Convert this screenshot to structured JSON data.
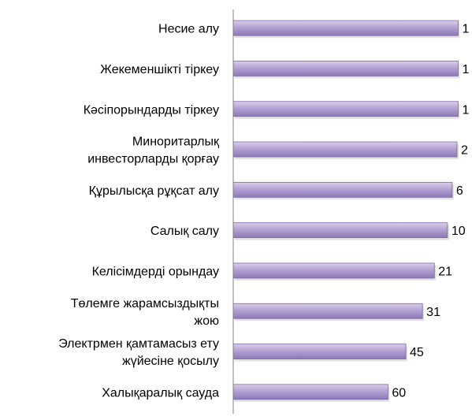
{
  "chart_data": {
    "type": "bar",
    "orientation": "horizontal",
    "categories": [
      "Несие алу",
      "Жекеменшікті тіркеу",
      "Кәсіпорындарды тіркеу",
      "Миноритарлық инвесторларды қорғау",
      "Құрылысқа рұқсат алу",
      "Салық салу",
      "Келісімдерді орындау",
      "Төлемге жарамсыздықты жою",
      "Электрмен қамтамасыз ету жүйесіне қосылу",
      "Халықаралық сауда"
    ],
    "category_lines": [
      [
        "Несие алу"
      ],
      [
        "Жекеменшікті тіркеу"
      ],
      [
        "Кәсіпорындарды тіркеу"
      ],
      [
        "Миноритарлық",
        "инвесторларды қорғау"
      ],
      [
        "Құрылысқа рұқсат алу"
      ],
      [
        "Салық салу"
      ],
      [
        "Келісімдерді орындау"
      ],
      [
        "Төлемге жарамсыздықты",
        "жою"
      ],
      [
        "Электрмен қамтамасыз ету",
        "жүйесіне қосылу"
      ],
      [
        "Халықаралық сауда"
      ]
    ],
    "series": [
      {
        "values": [
          1,
          1,
          1,
          2,
          6,
          10,
          21,
          31,
          45,
          60
        ],
        "value_labels": [
          "1",
          "1",
          "1",
          "2",
          "6",
          "10",
          "21",
          "31",
          "45",
          "60"
        ]
      }
    ],
    "scale": "reversed",
    "xlim": [
      0,
      190
    ],
    "grid": false,
    "legend": "none",
    "title": "",
    "xlabel": "",
    "ylabel": "",
    "colors": {
      "bar_fill_top": "#d9cfe8",
      "bar_fill_mid": "#b3a2d3",
      "bar_fill_bottom": "#8c79b6",
      "bar_stroke": "#7a68a6",
      "axis": "#808080",
      "text": "#000000"
    }
  }
}
